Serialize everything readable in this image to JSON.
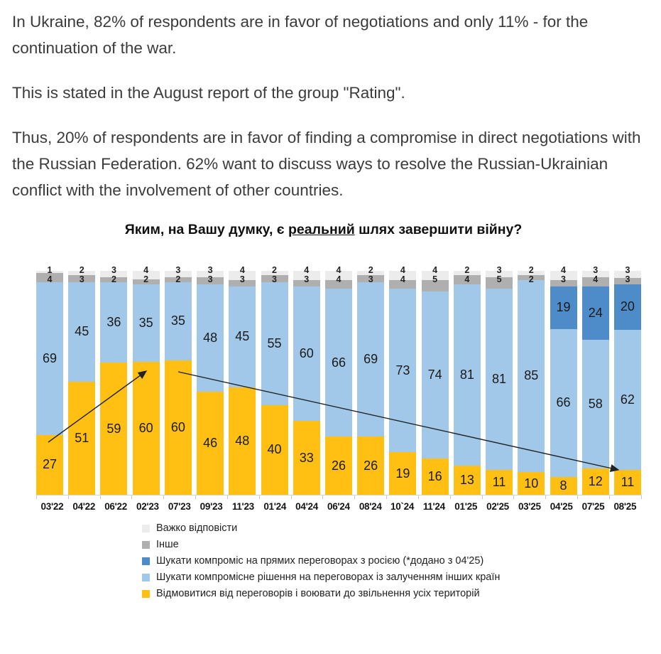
{
  "article": {
    "paragraphs": [
      "In Ukraine, 82% of respondents are in favor of negotiations and only 11% - for the continuation of the war.",
      "This is stated in the August report of the group \"Rating\".",
      "Thus, 20% of respondents are in favor of finding a compromise in direct negotiations with the Russian Federation. 62% want to discuss ways to resolve the Russian-Ukrainian conflict with the involvement of other countries."
    ]
  },
  "chart": {
    "title_prefix": "Яким, на Вашу думку, є ",
    "title_underlined": "реальний",
    "title_suffix": " шлях завершити війну?"
  },
  "chart_data": {
    "type": "bar",
    "stacked": true,
    "units": "percent",
    "ylim": [
      0,
      100
    ],
    "grid": false,
    "legend_position": "bottom-left",
    "title": "Яким, на Вашу думку, є реальний шлях завершити війну?",
    "categories": [
      "03'22",
      "04'22",
      "06'22",
      "02'23",
      "07'23",
      "09'23",
      "11'23",
      "01'24",
      "04'24",
      "06'24",
      "08'24",
      "10`24",
      "11'24",
      "01'25",
      "02'25",
      "03'25",
      "04'25",
      "07'25",
      "08'25"
    ],
    "series": [
      {
        "name": "Відмовитися від переговорів і воювати до звільнення усіх територій",
        "color": "#FFC013",
        "values": [
          27,
          51,
          59,
          60,
          60,
          46,
          48,
          40,
          33,
          26,
          26,
          19,
          16,
          13,
          11,
          10,
          8,
          12,
          11
        ]
      },
      {
        "name": "Шукати компромісне рішення на переговорах із залученням інших країн",
        "color": "#A2C8E9",
        "values": [
          69,
          45,
          36,
          35,
          35,
          48,
          45,
          55,
          60,
          66,
          69,
          73,
          74,
          81,
          81,
          85,
          66,
          58,
          62
        ]
      },
      {
        "name": "Шукати компроміс на прямих переговорах з росією (*додано з 04'25)",
        "color": "#4E8CC9",
        "values": [
          null,
          null,
          null,
          null,
          null,
          null,
          null,
          null,
          null,
          null,
          null,
          null,
          null,
          null,
          null,
          null,
          19,
          24,
          20
        ]
      },
      {
        "name": "Інше",
        "color": "#AFAFAF",
        "values": [
          4,
          3,
          2,
          2,
          2,
          3,
          3,
          3,
          3,
          4,
          3,
          4,
          5,
          4,
          5,
          2,
          3,
          4,
          3
        ]
      },
      {
        "name": "Важко відповісти",
        "color": "#ECECEC",
        "values": [
          1,
          2,
          3,
          4,
          3,
          3,
          4,
          2,
          4,
          4,
          2,
          4,
          4,
          2,
          3,
          2,
          4,
          3,
          3
        ]
      }
    ],
    "annotations": [
      {
        "type": "arrow",
        "direction": "up",
        "from_category": "03'22",
        "to_category": "02'23"
      },
      {
        "type": "arrow",
        "direction": "down",
        "from_category": "07'23",
        "to_category": "08'25"
      }
    ]
  },
  "legend": {
    "items": [
      {
        "label": "Важко відповісти",
        "color": "#ECECEC"
      },
      {
        "label": "Інше",
        "color": "#AFAFAF"
      },
      {
        "label": "Шукати компроміс на прямих переговорах з росією (*додано з 04'25)",
        "color": "#4E8CC9"
      },
      {
        "label": "Шукати компромісне рішення на переговорах із залученням інших країн",
        "color": "#A2C8E9"
      },
      {
        "label": "Відмовитися від переговорів і воювати до звільнення усіх територій",
        "color": "#FFC013"
      }
    ]
  }
}
